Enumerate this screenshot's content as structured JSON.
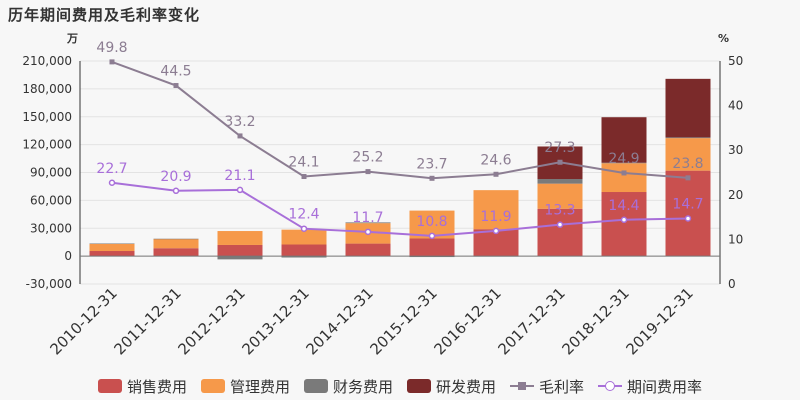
{
  "title": "历年期间费用及毛利率变化",
  "chart_data": {
    "type": "bar",
    "categories": [
      "2010-12-31",
      "2011-12-31",
      "2012-12-31",
      "2013-12-31",
      "2014-12-31",
      "2015-12-31",
      "2016-12-31",
      "2017-12-31",
      "2018-12-31",
      "2019-12-31"
    ],
    "left_axis": {
      "unit": "万",
      "ylim": [
        -30000,
        210000
      ],
      "ticks": [
        -30000,
        0,
        30000,
        60000,
        90000,
        120000,
        150000,
        180000,
        210000
      ],
      "tick_labels": [
        "-30,000",
        "0",
        "30,000",
        "60,000",
        "90,000",
        "120,000",
        "150,000",
        "180,000",
        "210,000"
      ]
    },
    "right_axis": {
      "unit": "%",
      "ylim": [
        0,
        50
      ],
      "ticks": [
        0,
        10,
        20,
        30,
        40,
        50
      ],
      "tick_labels": [
        "0",
        "10",
        "20",
        "30",
        "40",
        "50"
      ]
    },
    "series": [
      {
        "name": "销售费用",
        "kind": "bar",
        "color": "#c9504f",
        "values": [
          5500,
          8500,
          12000,
          12500,
          13500,
          19000,
          29000,
          51000,
          69000,
          92000
        ]
      },
      {
        "name": "管理费用",
        "kind": "bar",
        "color": "#f6994a",
        "values": [
          8000,
          10000,
          15000,
          16000,
          22000,
          30000,
          42000,
          27000,
          31000,
          35000
        ]
      },
      {
        "name": "财务费用",
        "kind": "bar",
        "color": "#7a7a7a",
        "values": [
          100,
          200,
          -3500,
          -1500,
          800,
          -1000,
          -500,
          5000,
          500,
          800
        ]
      },
      {
        "name": "研发费用",
        "kind": "bar",
        "color": "#7b2a2a",
        "values": [
          0,
          0,
          0,
          0,
          0,
          0,
          0,
          35000,
          49000,
          63000
        ]
      },
      {
        "name": "毛利率",
        "kind": "line",
        "axis": "right",
        "color": "#8c7d92",
        "values": [
          49.8,
          44.5,
          33.2,
          24.1,
          25.2,
          23.7,
          24.6,
          27.3,
          24.9,
          23.8
        ],
        "labels": [
          "49.8",
          "44.5",
          "33.2",
          "24.1",
          "25.2",
          "23.7",
          "24.6",
          "27.3",
          "24.9",
          "23.8"
        ]
      },
      {
        "name": "期间费用率",
        "kind": "line",
        "axis": "right",
        "color": "#a86fd9",
        "values": [
          22.7,
          20.9,
          21.1,
          12.4,
          11.7,
          10.8,
          11.9,
          13.3,
          14.4,
          14.7
        ],
        "labels": [
          "22.7",
          "20.9",
          "21.1",
          "12.4",
          "11.7",
          "10.8",
          "11.9",
          "13.3",
          "14.4",
          "14.7"
        ]
      }
    ],
    "legend_position": "bottom",
    "grid": true
  }
}
